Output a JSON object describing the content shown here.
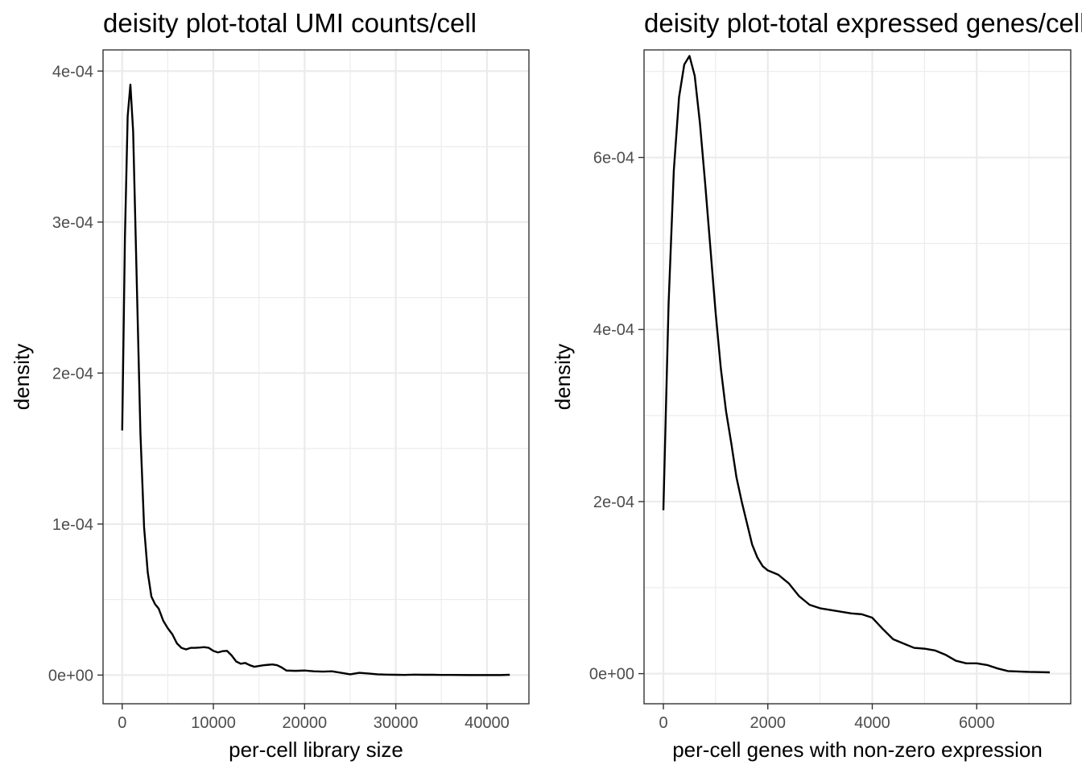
{
  "chart_data": [
    {
      "type": "line",
      "title": "deisity plot-total UMI counts/cell",
      "xlabel": "per-cell library size",
      "ylabel": "density",
      "xlim": [
        -2100,
        44600
      ],
      "ylim": [
        -1.9e-05,
        0.000414
      ],
      "x_ticks": [
        0,
        10000,
        20000,
        30000,
        40000
      ],
      "x_tick_labels": [
        "0",
        "10000",
        "20000",
        "30000",
        "40000"
      ],
      "y_ticks": [
        0,
        0.0001,
        0.0002,
        0.0003,
        0.0004
      ],
      "y_tick_labels": [
        "0e+00",
        "1e-04",
        "2e-04",
        "3e-04",
        "4e-04"
      ],
      "grid": true,
      "series": [
        {
          "x": [
            0,
            300,
            600,
            900,
            1200,
            1600,
            2000,
            2400,
            2800,
            3200,
            3600,
            4000,
            4500,
            5000,
            5500,
            6000,
            6500,
            7000,
            7500,
            8000,
            8500,
            9000,
            9500,
            10000,
            10500,
            11000,
            11500,
            12000,
            12500,
            13000,
            13500,
            14000,
            14500,
            15000,
            15500,
            16000,
            16500,
            17000,
            17500,
            18000,
            19000,
            20000,
            21000,
            22000,
            23000,
            24000,
            25000,
            26000,
            27000,
            28000,
            29000,
            30000,
            31000,
            32000,
            33000,
            34000,
            35000,
            36000,
            38000,
            40000,
            41500,
            42500
          ],
          "y": [
            0.000162,
            0.00029,
            0.00037,
            0.000391,
            0.00036,
            0.00026,
            0.00016,
            9.8e-05,
            6.8e-05,
            5.2e-05,
            4.7e-05,
            4.4e-05,
            3.6e-05,
            3.1e-05,
            2.7e-05,
            2.1e-05,
            1.8e-05,
            1.7e-05,
            1.8e-05,
            1.8e-05,
            1.82e-05,
            1.85e-05,
            1.8e-05,
            1.6e-05,
            1.5e-05,
            1.58e-05,
            1.6e-05,
            1.3e-05,
            9e-06,
            7.5e-06,
            8e-06,
            6.5e-06,
            5.5e-06,
            6e-06,
            6.5e-06,
            6.8e-06,
            7e-06,
            6.5e-06,
            5e-06,
            3e-06,
            2.8e-06,
            3e-06,
            2.5e-06,
            2.3e-06,
            2.5e-06,
            1.5e-06,
            5e-07,
            1.5e-06,
            1e-06,
            5e-07,
            3e-07,
            2e-07,
            1e-07,
            3e-07,
            2e-07,
            2e-07,
            1e-07,
            1e-07,
            0.0,
            0.0,
            0.0,
            2e-07
          ]
        }
      ]
    },
    {
      "type": "line",
      "title": "deisity plot-total expressed genes/cell",
      "xlabel": "per-cell genes with non-zero expression",
      "ylabel": "density",
      "xlim": [
        -370,
        7800
      ],
      "ylim": [
        -3.5e-05,
        0.000725
      ],
      "x_ticks": [
        0,
        2000,
        4000,
        6000
      ],
      "x_tick_labels": [
        "0",
        "2000",
        "4000",
        "6000"
      ],
      "y_ticks": [
        0,
        0.0002,
        0.0004,
        0.0006
      ],
      "y_tick_labels": [
        "0e+00",
        "2e-04",
        "4e-04",
        "6e-04"
      ],
      "grid": true,
      "series": [
        {
          "x": [
            0,
            100,
            200,
            300,
            400,
            500,
            600,
            700,
            800,
            900,
            1000,
            1100,
            1200,
            1300,
            1400,
            1500,
            1600,
            1700,
            1800,
            1900,
            2000,
            2200,
            2400,
            2600,
            2800,
            3000,
            3200,
            3400,
            3600,
            3800,
            4000,
            4200,
            4400,
            4600,
            4800,
            5000,
            5200,
            5400,
            5600,
            5800,
            6000,
            6200,
            6400,
            6600,
            6800,
            7000,
            7200,
            7400
          ],
          "y": [
            0.00019,
            0.00043,
            0.000585,
            0.00067,
            0.000708,
            0.000718,
            0.000695,
            0.00064,
            0.00057,
            0.000495,
            0.00042,
            0.000355,
            0.000305,
            0.000268,
            0.000228,
            0.0002,
            0.000175,
            0.00015,
            0.000135,
            0.000125,
            0.00012,
            0.000115,
            0.000105,
            9e-05,
            8e-05,
            7.6e-05,
            7.4e-05,
            7.2e-05,
            7e-05,
            6.9e-05,
            6.5e-05,
            5.2e-05,
            4e-05,
            3.5e-05,
            3e-05,
            2.9e-05,
            2.7e-05,
            2.2e-05,
            1.5e-05,
            1.2e-05,
            1.2e-05,
            1e-05,
            6e-06,
            3e-06,
            2.5e-06,
            2e-06,
            1.8e-06,
            1.5e-06
          ]
        }
      ]
    }
  ]
}
